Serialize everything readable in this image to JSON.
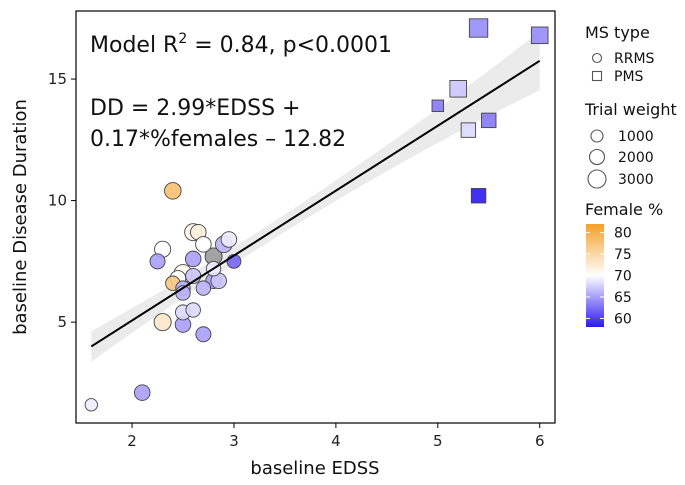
{
  "chart_data": {
    "type": "scatter",
    "x_axis": {
      "label": "baseline EDSS",
      "range": [
        1.45,
        6.15
      ],
      "ticks": [
        2,
        3,
        4,
        5,
        6
      ]
    },
    "y_axis": {
      "label": "baseline Disease Duration",
      "range": [
        0.85,
        17.8
      ],
      "ticks": [
        5,
        10,
        15
      ]
    },
    "annotations": {
      "r2_prefix": "Model R",
      "r2_sup": "2",
      "r2_suffix": " = 0.84, p<0.0001",
      "equation_line1": "DD = 2.99*EDSS +",
      "equation_line2": "0.17*%females – 12.82"
    },
    "regression": {
      "x_start": 1.6,
      "y_start": 4.0,
      "x_end": 6.0,
      "y_end": 15.75
    },
    "legend": {
      "shape_title": "MS type",
      "shapes": [
        {
          "label": "RRMS",
          "shape": "circle"
        },
        {
          "label": "PMS",
          "shape": "square"
        }
      ],
      "size_title": "Trial weight",
      "sizes": [
        {
          "label": "1000",
          "weight": 1000
        },
        {
          "label": "2000",
          "weight": 2000
        },
        {
          "label": "3000",
          "weight": 3000
        }
      ],
      "color_title": "Female %",
      "color_ticks": [
        "80",
        "75",
        "70",
        "65",
        "60"
      ],
      "color_range": [
        58,
        82
      ]
    },
    "colors": {
      "low": "#2d18f0",
      "mid": "#ffffff",
      "high": "#f5a028",
      "missing": "#999999",
      "ribbon": "#e6e6e6",
      "line": "#000000"
    },
    "points": [
      {
        "x": 1.6,
        "y": 1.6,
        "type": "RRMS",
        "weight": 400,
        "female": 69
      },
      {
        "x": 2.1,
        "y": 2.1,
        "type": "RRMS",
        "weight": 900,
        "female": 65
      },
      {
        "x": 2.25,
        "y": 7.5,
        "type": "RRMS",
        "weight": 800,
        "female": 65
      },
      {
        "x": 2.3,
        "y": 8.0,
        "type": "RRMS",
        "weight": 1000,
        "female": 70
      },
      {
        "x": 2.3,
        "y": 5.0,
        "type": "RRMS",
        "weight": 1200,
        "female": 73
      },
      {
        "x": 2.4,
        "y": 10.4,
        "type": "RRMS",
        "weight": 1100,
        "female": 78
      },
      {
        "x": 2.4,
        "y": 6.6,
        "type": "RRMS",
        "weight": 700,
        "female": 77
      },
      {
        "x": 2.45,
        "y": 6.8,
        "type": "RRMS",
        "weight": 900,
        "female": 70
      },
      {
        "x": 2.5,
        "y": 7.0,
        "type": "RRMS",
        "weight": 1400,
        "female": 71
      },
      {
        "x": 2.5,
        "y": 6.4,
        "type": "RRMS",
        "weight": 700,
        "female": 66
      },
      {
        "x": 2.5,
        "y": 6.2,
        "type": "RRMS",
        "weight": 700,
        "female": 66
      },
      {
        "x": 2.5,
        "y": 5.4,
        "type": "RRMS",
        "weight": 800,
        "female": 68
      },
      {
        "x": 2.5,
        "y": 4.9,
        "type": "RRMS",
        "weight": 900,
        "female": 65
      },
      {
        "x": 2.6,
        "y": 8.7,
        "type": "RRMS",
        "weight": 1200,
        "female": 71
      },
      {
        "x": 2.6,
        "y": 7.6,
        "type": "RRMS",
        "weight": 900,
        "female": 65
      },
      {
        "x": 2.6,
        "y": 6.9,
        "type": "RRMS",
        "weight": 800,
        "female": 67
      },
      {
        "x": 2.6,
        "y": 5.5,
        "type": "RRMS",
        "weight": 700,
        "female": 68
      },
      {
        "x": 2.65,
        "y": 8.7,
        "type": "RRMS",
        "weight": 900,
        "female": 72
      },
      {
        "x": 2.7,
        "y": 8.2,
        "type": "RRMS",
        "weight": 900,
        "female": 70
      },
      {
        "x": 2.7,
        "y": 6.4,
        "type": "RRMS",
        "weight": 700,
        "female": 66
      },
      {
        "x": 2.7,
        "y": 4.5,
        "type": "RRMS",
        "weight": 800,
        "female": 65
      },
      {
        "x": 2.8,
        "y": 7.7,
        "type": "RRMS",
        "weight": 1200,
        "female": null
      },
      {
        "x": 2.8,
        "y": 7.2,
        "type": "RRMS",
        "weight": 700,
        "female": 69
      },
      {
        "x": 2.8,
        "y": 6.7,
        "type": "RRMS",
        "weight": 900,
        "female": 65
      },
      {
        "x": 2.85,
        "y": 6.7,
        "type": "RRMS",
        "weight": 900,
        "female": 67
      },
      {
        "x": 2.9,
        "y": 8.2,
        "type": "RRMS",
        "weight": 1100,
        "female": 66
      },
      {
        "x": 2.95,
        "y": 8.4,
        "type": "RRMS",
        "weight": 900,
        "female": 69
      },
      {
        "x": 3.0,
        "y": 7.5,
        "type": "RRMS",
        "weight": 600,
        "female": 62
      },
      {
        "x": 5.0,
        "y": 13.9,
        "type": "PMS",
        "weight": 300,
        "female": 63
      },
      {
        "x": 5.2,
        "y": 14.6,
        "type": "PMS",
        "weight": 1100,
        "female": 67
      },
      {
        "x": 5.3,
        "y": 12.9,
        "type": "PMS",
        "weight": 700,
        "female": 68
      },
      {
        "x": 5.4,
        "y": 17.1,
        "type": "PMS",
        "weight": 1500,
        "female": 64
      },
      {
        "x": 5.4,
        "y": 10.2,
        "type": "PMS",
        "weight": 700,
        "female": 58
      },
      {
        "x": 5.5,
        "y": 13.3,
        "type": "PMS",
        "weight": 700,
        "female": 63
      },
      {
        "x": 6.0,
        "y": 16.8,
        "type": "PMS",
        "weight": 1100,
        "female": 64
      }
    ]
  }
}
